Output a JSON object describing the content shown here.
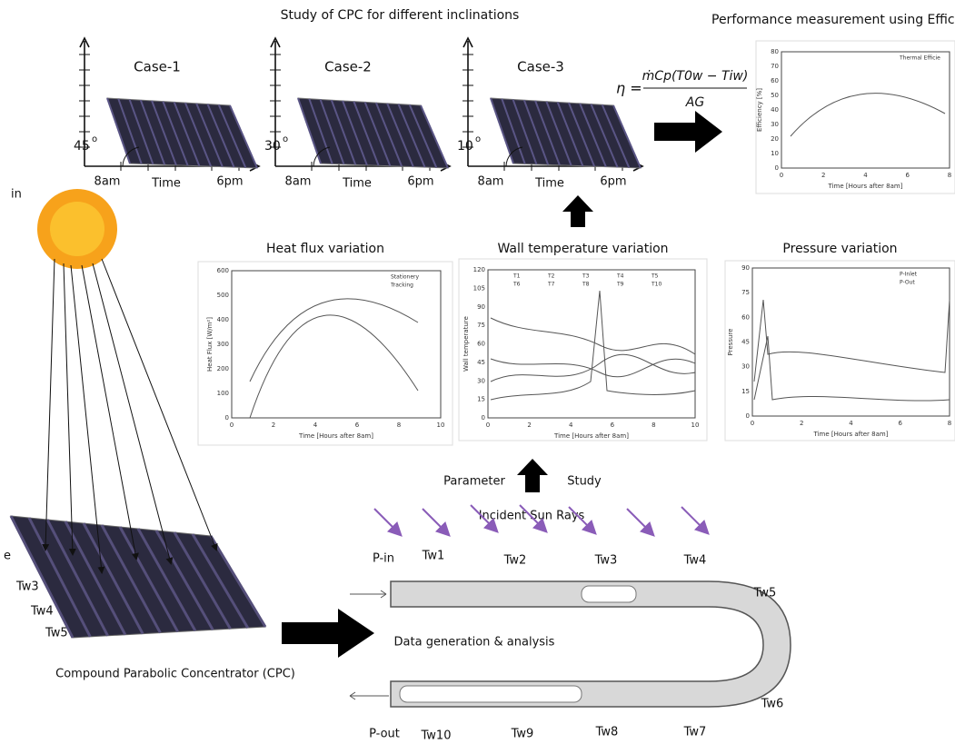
{
  "header": {
    "title": "Study of CPC for different inclinations",
    "performance_title": "Performance measurement using Efficie"
  },
  "cases": [
    {
      "label": "Case-1",
      "angle": "45",
      "degree": "o",
      "start": "8am",
      "axis": "Time",
      "end": "6pm"
    },
    {
      "label": "Case-2",
      "angle": "30",
      "degree": "o",
      "start": "8am",
      "axis": "Time",
      "end": "6pm"
    },
    {
      "label": "Case-3",
      "angle": "10",
      "degree": "o",
      "start": "8am",
      "axis": "Time",
      "end": "6pm"
    }
  ],
  "formula": {
    "lhs": "η =",
    "numerator": "ṁCp(T0w − Tiw)",
    "denominator": "AG"
  },
  "efficiency_plot": {
    "ylabel": "Efficiency [%]",
    "xlabel": "Time [Hours after 8am]",
    "yticks": [
      0,
      10,
      20,
      30,
      40,
      50,
      60,
      70,
      80
    ],
    "xticks": [
      0,
      2,
      4,
      6,
      8
    ],
    "legend": [
      "Thermal Efficie"
    ]
  },
  "sun_label": "in",
  "plots": [
    {
      "title": "Heat flux variation",
      "ylabel": "Heat Flux [W/m²]",
      "xlabel": "Time [Hours after 8am]",
      "yticks": [
        0,
        100,
        200,
        300,
        400,
        500,
        600
      ],
      "xticks": [
        0,
        2,
        4,
        6,
        8,
        10
      ],
      "legend": [
        "Stationery",
        "Tracking"
      ]
    },
    {
      "title": "Wall temperature variation",
      "ylabel": "Wall temperature",
      "xlabel": "Time [Hours after 8am]",
      "yticks": [
        0,
        15,
        30,
        45,
        60,
        75,
        90,
        105,
        120
      ],
      "xticks": [
        0,
        2,
        4,
        6,
        8,
        10
      ],
      "legend": [
        "T1",
        "T2",
        "T3",
        "T4",
        "T5",
        "T6",
        "T7",
        "T8",
        "T9",
        "T10"
      ]
    },
    {
      "title": "Pressure variation",
      "ylabel": "Pressure",
      "xlabel": "Time [Hours after 8am]",
      "yticks": [
        0,
        15,
        30,
        45,
        60,
        75,
        90
      ],
      "xticks": [
        0,
        2,
        4,
        6,
        8
      ],
      "legend": [
        "P-Inlet",
        "P-Out"
      ]
    }
  ],
  "parameter_study": {
    "left": "Parameter",
    "right": "Study"
  },
  "rays_label": "Incident Sun Rays",
  "pipe": {
    "inlet": "P-in",
    "outlet": "P-out",
    "sensors": [
      "Tw1",
      "Tw2",
      "Tw3",
      "Tw4",
      "Tw5",
      "Tw6",
      "Tw7",
      "Tw8",
      "Tw9",
      "Tw10"
    ]
  },
  "cpc": {
    "sensors": [
      "e",
      "Tw3",
      "Tw4",
      "Tw5"
    ],
    "caption": "Compound Parabolic Concentrator (CPC)"
  },
  "analysis_label": "Data generation & analysis"
}
